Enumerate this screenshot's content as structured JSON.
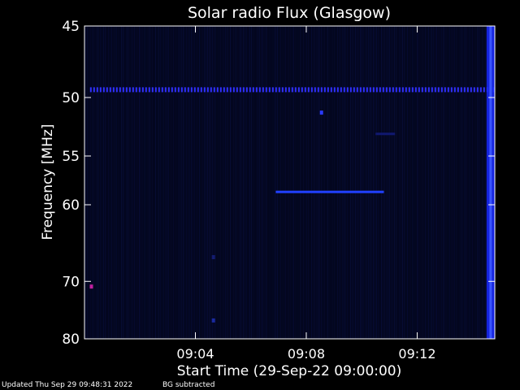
{
  "chart_data": {
    "type": "heatmap",
    "title": "Solar radio Flux (Glasgow)",
    "ylabel": "Frequency [MHz]",
    "xlabel": "Start Time (29-Sep-22 09:00:00)",
    "x_unit": "minutes after 09:00:00",
    "xlim": [
      0,
      14.8
    ],
    "ylim": [
      45,
      80
    ],
    "x_ticks": [
      {
        "value": 4,
        "label": "09:04"
      },
      {
        "value": 8,
        "label": "09:08"
      },
      {
        "value": 12,
        "label": "09:12"
      }
    ],
    "y_ticks": [
      {
        "value": 45,
        "label": "45"
      },
      {
        "value": 50,
        "label": "50"
      },
      {
        "value": 55,
        "label": "55"
      },
      {
        "value": 60,
        "label": "60"
      },
      {
        "value": 70,
        "label": "70"
      },
      {
        "value": 80,
        "label": "80"
      }
    ],
    "features": [
      {
        "kind": "dotted-band",
        "freq_mhz": 49.4,
        "t_start": 0.2,
        "t_end": 14.8,
        "color": "#3030ff"
      },
      {
        "kind": "band",
        "freq_mhz": 58.6,
        "t_start": 6.9,
        "t_end": 10.8,
        "color": "#2040ff"
      },
      {
        "kind": "band",
        "freq_mhz": 53.0,
        "t_start": 10.5,
        "t_end": 11.2,
        "color": "#101870"
      },
      {
        "kind": "burst",
        "t_start": 14.5,
        "t_end": 14.8,
        "freq_start": 45,
        "freq_end": 80,
        "color": "#1a2aff"
      },
      {
        "kind": "spot",
        "t": 0.25,
        "freq_mhz": 70.8,
        "color": "#c020a0"
      },
      {
        "kind": "spot",
        "t": 8.55,
        "freq_mhz": 51.2,
        "color": "#2a3aff"
      },
      {
        "kind": "spot",
        "t": 4.65,
        "freq_mhz": 76.5,
        "color": "#1a2aa0"
      },
      {
        "kind": "spot",
        "t": 4.65,
        "freq_mhz": 66.5,
        "color": "#141c70"
      }
    ],
    "colors": {
      "background": "#000000",
      "plot_background": "#03061c",
      "axis": "#ffffff",
      "text": "#ffffff",
      "signal": "#2040ff"
    }
  },
  "footer": {
    "updated": "Updated Thu Sep 29 09:48:31 2022",
    "bg_note": "BG subtracted"
  }
}
